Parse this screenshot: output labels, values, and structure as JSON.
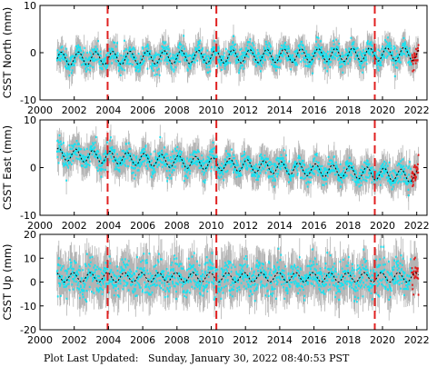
{
  "footer": {
    "label": "Plot Last Updated:",
    "timestamp": "Sunday, January 30, 2022 08:40:53 PST"
  },
  "colors": {
    "errorbar": "#b4b4b4",
    "points": "#19e1f0",
    "recent_points": "#e01818",
    "model_line": "#000000",
    "event_line": "#e02020"
  },
  "chart_data": [
    {
      "type": "scatter",
      "ylabel": "CSST North (mm)",
      "xlim": [
        2000,
        2022.6
      ],
      "ylim": [
        -10,
        10
      ],
      "x_ticks": [
        2000,
        2002,
        2004,
        2006,
        2008,
        2010,
        2012,
        2014,
        2016,
        2018,
        2020,
        2022
      ],
      "y_ticks": [
        -10,
        0,
        10
      ],
      "event_lines_x": [
        2003.95,
        2010.3,
        2019.55
      ],
      "data_range_x": [
        2001.0,
        2022.1
      ],
      "model": {
        "offset": -1.3,
        "trend_per_year": 0.05,
        "annual_amplitude": 1.4,
        "scatter": 2.0,
        "errorbar": 2.2
      }
    },
    {
      "type": "scatter",
      "ylabel": "CSST East (mm)",
      "xlim": [
        2000,
        2022.6
      ],
      "ylim": [
        -10,
        10
      ],
      "x_ticks": [
        2000,
        2002,
        2004,
        2006,
        2008,
        2010,
        2012,
        2014,
        2016,
        2018,
        2020,
        2022
      ],
      "y_ticks": [
        -10,
        0,
        10
      ],
      "event_lines_x": [
        2003.95,
        2010.3,
        2019.55
      ],
      "data_range_x": [
        2001.0,
        2022.1
      ],
      "model": {
        "offset": 2.8,
        "trend_per_year": -0.22,
        "annual_amplitude": 1.3,
        "scatter": 2.0,
        "errorbar": 2.5
      }
    },
    {
      "type": "scatter",
      "ylabel": "CSST Up (mm)",
      "xlim": [
        2000,
        2022.6
      ],
      "ylim": [
        -20,
        20
      ],
      "x_ticks": [
        2000,
        2002,
        2004,
        2006,
        2008,
        2010,
        2012,
        2014,
        2016,
        2018,
        2020,
        2022
      ],
      "y_ticks": [
        -20,
        -10,
        0,
        10,
        20
      ],
      "event_lines_x": [
        2003.95,
        2010.3,
        2019.55
      ],
      "data_range_x": [
        2001.0,
        2022.1
      ],
      "model": {
        "offset": 2.0,
        "trend_per_year": 0.0,
        "annual_amplitude": 2.0,
        "scatter": 6.5,
        "errorbar": 7.0
      }
    }
  ]
}
